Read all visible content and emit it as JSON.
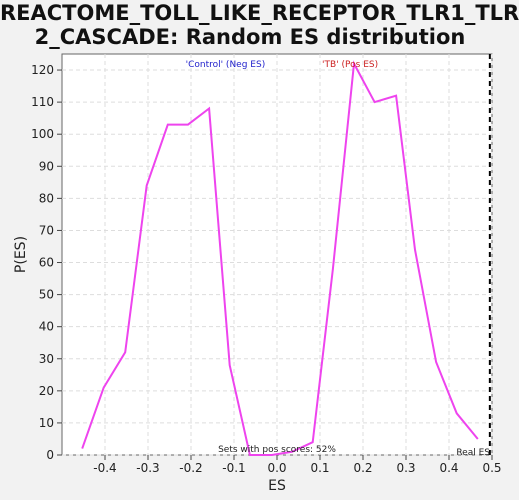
{
  "title_line1": "REACTOME_TOLL_LIKE_RECEPTOR_TLR1_TLR",
  "title_line2": "2_CASCADE: Random ES distribution",
  "chart_data": {
    "type": "line",
    "title": "REACTOME_TOLL_LIKE_RECEPTOR_TLR1_TLR2_CASCADE: Random ES distribution",
    "xlabel": "ES",
    "ylabel": "P(ES)",
    "xlim": [
      -0.5,
      0.5
    ],
    "ylim": [
      0,
      125
    ],
    "xticks": [
      -0.4,
      -0.3,
      -0.2,
      -0.1,
      0.0,
      0.1,
      0.2,
      0.3,
      0.4,
      0.5
    ],
    "xtick_labels": [
      "-0.4",
      "-0.3",
      "-0.2",
      "-0.1",
      "0.0",
      "0.1",
      "0.2",
      "0.3",
      "0.4",
      "0.5"
    ],
    "yticks": [
      0,
      10,
      20,
      30,
      40,
      50,
      60,
      70,
      80,
      90,
      100,
      110,
      120
    ],
    "ytick_labels": [
      "0",
      "10",
      "20",
      "30",
      "40",
      "50",
      "60",
      "70",
      "80",
      "90",
      "100",
      "110",
      "120"
    ],
    "grid": true,
    "series": [
      {
        "x": [
          -0.453,
          -0.403,
          -0.353,
          -0.303,
          -0.254,
          -0.207,
          -0.158,
          -0.11,
          -0.063,
          -0.012,
          0.035,
          0.083,
          0.13,
          0.179,
          0.227,
          0.277,
          0.321,
          0.37,
          0.418,
          0.467
        ],
        "values": [
          2,
          21,
          32,
          84,
          103,
          103,
          108,
          28,
          0,
          0,
          1,
          4,
          58,
          122,
          110,
          112,
          64,
          29,
          13,
          5
        ],
        "color": "#ee44ee"
      }
    ],
    "real_es": 0.495,
    "annotations": {
      "neg_label": "'Control' (Neg ES)",
      "pos_label": "'TB' (Pos ES)",
      "footer": "Sets with pos scores: 52%",
      "real_es_label": "Real ES"
    },
    "colors": {
      "line": "#ee44ee",
      "neg_label": "#2222cc",
      "pos_label": "#cc2222",
      "grid": "#dddddd",
      "plot_bg": "#ffffff",
      "page_bg": "#f2f2f2"
    }
  }
}
